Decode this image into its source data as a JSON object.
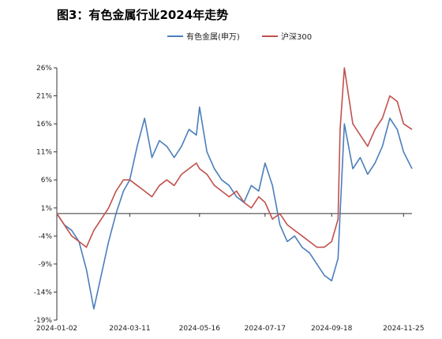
{
  "title": "图3：有色金属行业2024年走势",
  "chart_data": {
    "type": "line",
    "title": "图3：有色金属行业2024年走势",
    "xlabel": "",
    "ylabel": "",
    "x_tick_labels": [
      "2024-01-02",
      "2024-03-11",
      "2024-05-16",
      "2024-07-17",
      "2024-09-18",
      "2024-11-25"
    ],
    "y_tick_labels": [
      "26%",
      "21%",
      "16%",
      "11%",
      "6%",
      "1%",
      "-4%",
      "-9%",
      "-14%",
      "-19%"
    ],
    "y_ticks": [
      26,
      21,
      16,
      11,
      6,
      1,
      -4,
      -9,
      -14,
      -19
    ],
    "ylim": [
      -19,
      26
    ],
    "xlim": [
      "2024-01-02",
      "2024-12-03"
    ],
    "baseline": 0,
    "legend_position": "top",
    "grid": false,
    "x": [
      "2024-01-02",
      "2024-01-09",
      "2024-01-16",
      "2024-01-23",
      "2024-01-30",
      "2024-02-06",
      "2024-02-20",
      "2024-02-27",
      "2024-03-05",
      "2024-03-11",
      "2024-03-18",
      "2024-03-25",
      "2024-04-01",
      "2024-04-08",
      "2024-04-15",
      "2024-04-22",
      "2024-04-29",
      "2024-05-06",
      "2024-05-13",
      "2024-05-16",
      "2024-05-23",
      "2024-05-30",
      "2024-06-06",
      "2024-06-13",
      "2024-06-20",
      "2024-06-27",
      "2024-07-04",
      "2024-07-11",
      "2024-07-17",
      "2024-07-24",
      "2024-07-31",
      "2024-08-07",
      "2024-08-14",
      "2024-08-21",
      "2024-08-28",
      "2024-09-04",
      "2024-09-11",
      "2024-09-18",
      "2024-09-24",
      "2024-09-26",
      "2024-09-30",
      "2024-10-08",
      "2024-10-15",
      "2024-10-22",
      "2024-10-29",
      "2024-11-05",
      "2024-11-12",
      "2024-11-19",
      "2024-11-25",
      "2024-12-03"
    ],
    "series": [
      {
        "name": "有色金属(申万)",
        "color": "#4a7ebb",
        "values": [
          0,
          -2,
          -3,
          -5,
          -10,
          -17,
          -5,
          0,
          4,
          6,
          12,
          17,
          10,
          13,
          12,
          10,
          12,
          15,
          14,
          19,
          11,
          8,
          6,
          5,
          3,
          2,
          5,
          4,
          9,
          5,
          -2,
          -5,
          -4,
          -6,
          -7,
          -9,
          -11,
          -12,
          -8,
          0,
          16,
          8,
          10,
          7,
          9,
          12,
          17,
          15,
          11,
          8
        ]
      },
      {
        "name": "沪深300",
        "color": "#c0504d",
        "values": [
          0,
          -2,
          -4,
          -5,
          -6,
          -3,
          1,
          4,
          6,
          6,
          5,
          4,
          3,
          5,
          6,
          5,
          7,
          8,
          9,
          8,
          7,
          5,
          4,
          3,
          4,
          2,
          1,
          3,
          2,
          -1,
          0,
          -2,
          -3,
          -4,
          -5,
          -6,
          -6,
          -5,
          -1,
          15,
          26,
          16,
          14,
          12,
          15,
          17,
          21,
          20,
          16,
          15
        ]
      }
    ]
  }
}
